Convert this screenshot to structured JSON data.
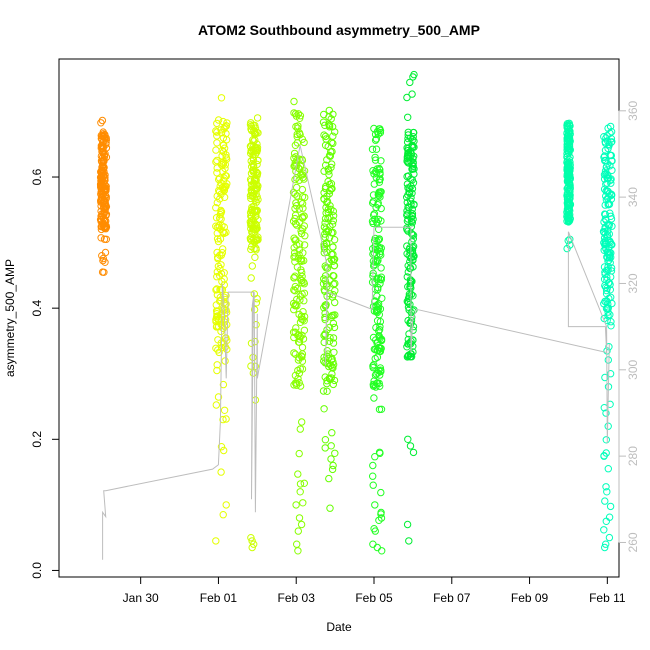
{
  "chart_data": {
    "type": "scatter",
    "title": "ATOM2 Southbound asymmetry_500_AMP",
    "xlabel": "Date",
    "ylabel": "asymmetry_500_AMP",
    "x_axis": {
      "unit": "days since Jan 30",
      "range": [
        -2.1,
        12.3
      ],
      "ticks": [
        {
          "value": 0,
          "label": "Jan 30"
        },
        {
          "value": 2,
          "label": "Feb 01"
        },
        {
          "value": 4,
          "label": "Feb 03"
        },
        {
          "value": 6,
          "label": "Feb 05"
        },
        {
          "value": 8,
          "label": "Feb 07"
        },
        {
          "value": 10,
          "label": "Feb 09"
        },
        {
          "value": 12,
          "label": "Feb 11"
        }
      ]
    },
    "y_axis": {
      "range": [
        -0.01,
        0.78
      ],
      "ticks": [
        {
          "value": 0.0,
          "label": "0.0"
        },
        {
          "value": 0.2,
          "label": "0.2"
        },
        {
          "value": 0.4,
          "label": "0.4"
        },
        {
          "value": 0.6,
          "label": "0.6"
        }
      ]
    },
    "y2_axis": {
      "range": [
        252,
        372
      ],
      "color": "#bdbdbd",
      "ticks": [
        {
          "value": 260,
          "label": "260"
        },
        {
          "value": 280,
          "label": "280"
        },
        {
          "value": 300,
          "label": "300"
        },
        {
          "value": 320,
          "label": "320"
        },
        {
          "value": 340,
          "label": "340"
        },
        {
          "value": 360,
          "label": "360"
        }
      ]
    },
    "series": [
      {
        "x": -0.95,
        "xmin": -1.03,
        "xmax": -0.88,
        "color": "#ff8c00",
        "core": [
          0.52,
          0.67
        ],
        "ext": [
          0.45,
          0.69
        ],
        "outliers": [
          0.47,
          0.48,
          0.455
        ]
      },
      {
        "x": 2.07,
        "xmin": 1.93,
        "xmax": 2.22,
        "color": "#e5ff00",
        "core": [
          0.33,
          0.69
        ],
        "ext": [
          0.18,
          0.74
        ],
        "outliers": [
          0.1,
          0.085,
          0.045,
          0.15
        ]
      },
      {
        "x": 2.92,
        "xmin": 2.82,
        "xmax": 3.02,
        "color": "#ccff00",
        "core": [
          0.5,
          0.68
        ],
        "ext": [
          0.3,
          0.695
        ],
        "outliers": [
          0.04,
          0.045,
          0.05,
          0.035,
          0.26
        ]
      },
      {
        "x": 4.07,
        "xmin": 3.93,
        "xmax": 4.22,
        "color": "#88ff00",
        "core": [
          0.28,
          0.7
        ],
        "ext": [
          0.08,
          0.72
        ],
        "outliers": [
          0.07,
          0.06,
          0.04,
          0.03,
          0.1,
          0.12
        ]
      },
      {
        "x": 4.85,
        "xmin": 4.7,
        "xmax": 5.0,
        "color": "#66ff00",
        "core": [
          0.28,
          0.7
        ],
        "ext": [
          0.1,
          0.72
        ],
        "outliers": [
          0.14,
          0.16,
          0.17,
          0.095
        ]
      },
      {
        "x": 6.07,
        "xmin": 5.96,
        "xmax": 6.2,
        "color": "#22ff22",
        "core": [
          0.27,
          0.68
        ],
        "ext": [
          0.035,
          0.69
        ],
        "outliers": [
          0.03,
          0.035,
          0.04,
          0.06,
          0.08,
          0.1,
          0.13,
          0.16
        ]
      },
      {
        "x": 6.93,
        "xmin": 6.84,
        "xmax": 7.03,
        "color": "#00ee33",
        "core": [
          0.32,
          0.67
        ],
        "ext": [
          0.27,
          0.76
        ],
        "outliers": [
          0.2,
          0.19,
          0.18,
          0.07,
          0.045
        ]
      },
      {
        "x": 11.0,
        "xmin": 10.96,
        "xmax": 11.05,
        "color": "#00ffaa",
        "core": [
          0.53,
          0.68
        ],
        "ext": [
          0.49,
          0.69
        ],
        "outliers": []
      },
      {
        "x": 12.0,
        "xmin": 11.9,
        "xmax": 12.12,
        "color": "#00ffbb",
        "core": [
          0.37,
          0.68
        ],
        "ext": [
          0.035,
          0.69
        ],
        "outliers": [
          0.04,
          0.035,
          0.075,
          0.12,
          0.175,
          0.22,
          0.24,
          0.28,
          0.3
        ]
      }
    ],
    "y2_line": {
      "color": "#bdbdbd",
      "points": [
        [
          -0.98,
          256
        ],
        [
          -0.98,
          267
        ],
        [
          -0.9,
          266
        ],
        [
          -0.95,
          272
        ],
        [
          -0.9,
          272
        ],
        [
          1.85,
          277
        ],
        [
          2.0,
          278
        ],
        [
          2.05,
          288
        ],
        [
          2.1,
          320
        ],
        [
          2.15,
          314
        ],
        [
          2.2,
          298
        ],
        [
          2.25,
          318
        ],
        [
          2.9,
          318
        ],
        [
          2.85,
          270
        ],
        [
          2.87,
          315
        ],
        [
          2.92,
          318
        ],
        [
          2.95,
          267
        ],
        [
          3.0,
          313
        ],
        [
          3.0,
          298
        ],
        [
          4.1,
          352
        ],
        [
          4.8,
          324
        ],
        [
          4.75,
          301
        ],
        [
          4.8,
          318
        ],
        [
          5.95,
          314
        ],
        [
          6.0,
          333
        ],
        [
          6.95,
          333
        ],
        [
          6.95,
          304
        ],
        [
          7.0,
          312
        ],
        [
          7.1,
          314
        ],
        [
          11.98,
          304
        ],
        [
          11.95,
          310
        ],
        [
          11.0,
          310
        ],
        [
          11.0,
          332
        ],
        [
          11.98,
          310
        ],
        [
          12.0,
          283
        ],
        [
          12.05,
          306
        ]
      ]
    }
  }
}
